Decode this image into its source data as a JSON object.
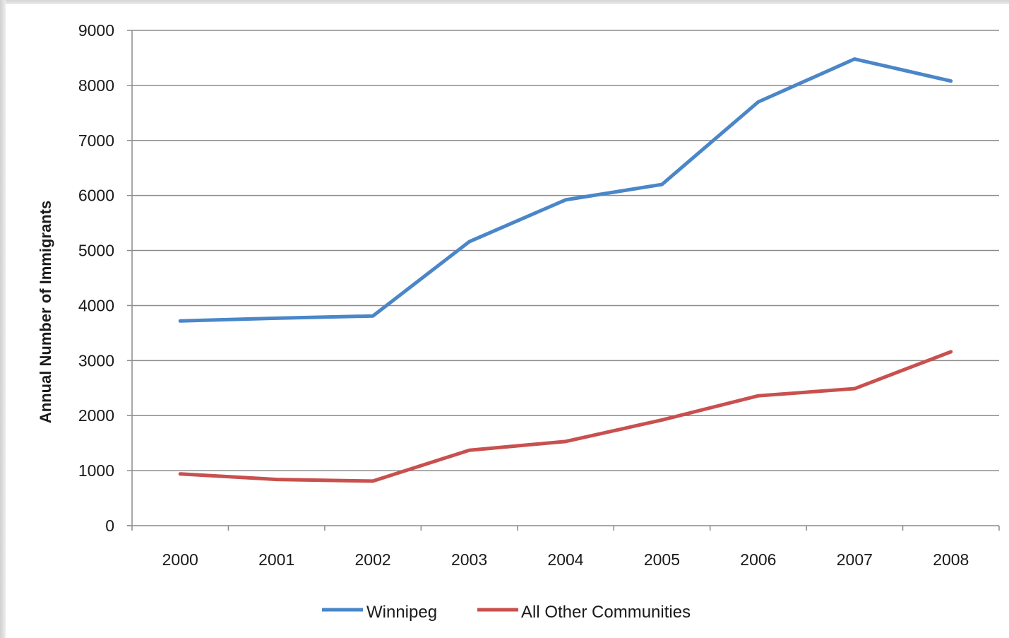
{
  "chart_data": {
    "type": "line",
    "title": "",
    "xlabel": "",
    "ylabel": "Annual Number of Immigrants",
    "ylim": [
      0,
      9000
    ],
    "yticks": [
      "0",
      "1000",
      "2000",
      "3000",
      "4000",
      "5000",
      "6000",
      "7000",
      "8000",
      "9000"
    ],
    "categories": [
      "2000",
      "2001",
      "2002",
      "2003",
      "2004",
      "2005",
      "2006",
      "2007",
      "2008"
    ],
    "grid": "horizontal",
    "legend_position": "bottom",
    "series": [
      {
        "name": "Winnipeg",
        "color": "#4a86c8",
        "values": [
          3720,
          3770,
          3810,
          5160,
          5920,
          6200,
          7700,
          8480,
          8080
        ]
      },
      {
        "name": "All Other Communities",
        "color": "#c8504e",
        "values": [
          940,
          840,
          810,
          1370,
          1530,
          1920,
          2360,
          2490,
          3160
        ]
      }
    ]
  }
}
